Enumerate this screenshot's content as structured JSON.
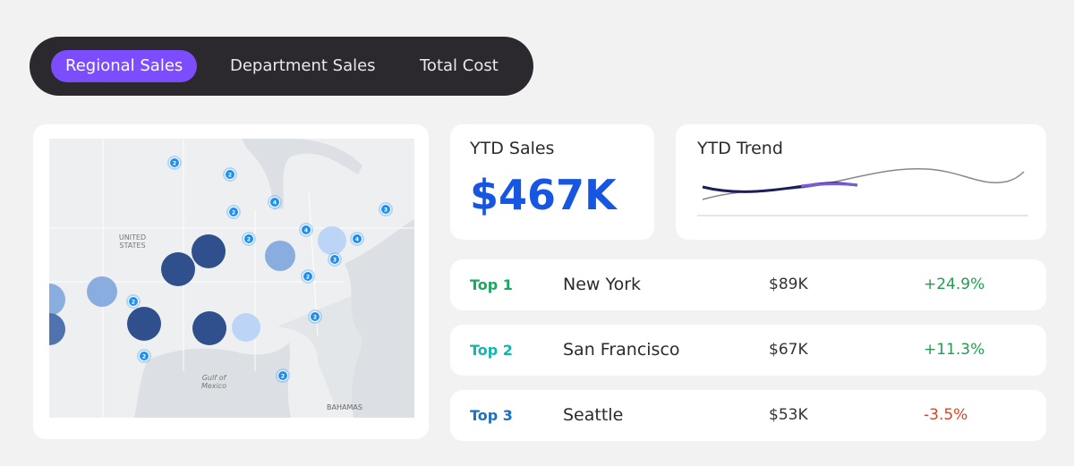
{
  "tabs": [
    "Regional Sales",
    "Department Sales",
    "Total Cost"
  ],
  "active_tab": 0,
  "ytd_sales": {
    "title": "YTD Sales",
    "value": "$467K"
  },
  "ytd_trend": {
    "title": "YTD Trend"
  },
  "top_list": [
    {
      "rank": "Top 1",
      "city": "New York",
      "sales": "$89K",
      "change": "+24.9%"
    },
    {
      "rank": "Top 2",
      "city": "San Francisco",
      "sales": "$67K",
      "change": "+11.3%"
    },
    {
      "rank": "Top 3",
      "city": "Seattle",
      "sales": "$53K",
      "change": "-3.5%"
    }
  ],
  "map": {
    "labels": [
      "UNITED",
      "STATES",
      "Gulf of",
      "Mexico",
      "BAHAMAS"
    ],
    "clusters": [
      2,
      2,
      4,
      2,
      3,
      4,
      4,
      2,
      3,
      2,
      2,
      2,
      2,
      2
    ]
  }
}
